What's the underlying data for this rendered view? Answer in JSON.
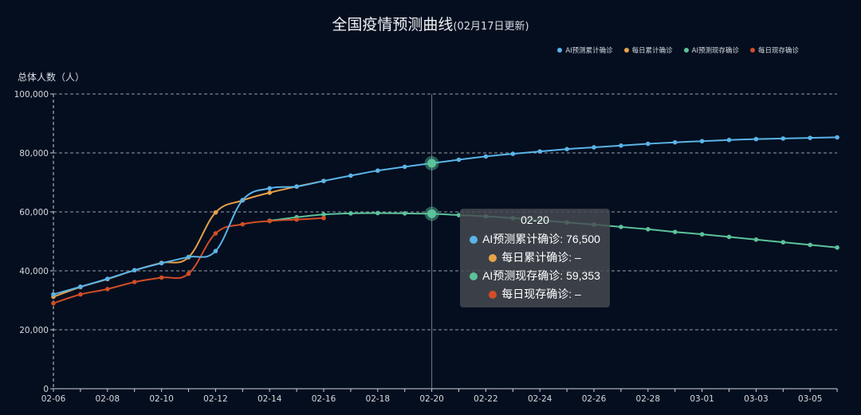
{
  "chart_data": {
    "type": "line",
    "title": "全国疫情预测曲线",
    "subtitle": "(02月17日更新)",
    "ylabel": "总体人数（人）",
    "ylim": [
      0,
      100000
    ],
    "yticks": [
      0,
      20000,
      40000,
      60000,
      80000,
      100000
    ],
    "ytick_labels": [
      "0",
      "20,000",
      "40,000",
      "60,000",
      "80,000",
      "100,000"
    ],
    "xticks": [
      "02-06",
      "02-08",
      "02-10",
      "02-12",
      "02-14",
      "02-16",
      "02-18",
      "02-20",
      "02-22",
      "02-24",
      "02-26",
      "02-28",
      "03-01",
      "03-03",
      "03-05"
    ],
    "x_dates": [
      "02-06",
      "02-07",
      "02-08",
      "02-09",
      "02-10",
      "02-11",
      "02-12",
      "02-13",
      "02-14",
      "02-15",
      "02-16",
      "02-17",
      "02-18",
      "02-19",
      "02-20",
      "02-21",
      "02-22",
      "02-23",
      "02-24",
      "02-25",
      "02-26",
      "02-27",
      "02-28",
      "02-29",
      "03-01",
      "03-02",
      "03-03",
      "03-04",
      "03-05",
      "03-06"
    ],
    "grid": true,
    "legend_position": "top-right",
    "series": [
      {
        "name": "AI预测累计确诊",
        "color": "#5ab4e8",
        "values": [
          32000,
          34600,
          37300,
          40200,
          42600,
          44700,
          46700,
          64000,
          68000,
          68600,
          70500,
          72300,
          74000,
          75300,
          76500,
          77700,
          78800,
          79700,
          80500,
          81300,
          81900,
          82500,
          83100,
          83600,
          84000,
          84400,
          84700,
          84900,
          85100,
          85300
        ]
      },
      {
        "name": "每日累计确诊",
        "color": "#e8a24a",
        "values": [
          31200,
          34500,
          37200,
          40200,
          42700,
          44600,
          59800,
          63900,
          66500,
          68600,
          70500,
          null,
          null,
          null,
          null,
          null,
          null,
          null,
          null,
          null,
          null,
          null,
          null,
          null,
          null,
          null,
          null,
          null,
          null,
          null
        ]
      },
      {
        "name": "AI预测现存确诊",
        "color": "#5cc29a",
        "values": [
          null,
          null,
          null,
          null,
          null,
          null,
          null,
          null,
          57000,
          58200,
          59100,
          59500,
          59600,
          59500,
          59353,
          58900,
          58500,
          57900,
          57200,
          56400,
          55700,
          54900,
          54100,
          53200,
          52400,
          51500,
          50600,
          49700,
          48800,
          47900
        ]
      },
      {
        "name": "每日现存确诊",
        "color": "#d24e26",
        "values": [
          29000,
          32000,
          33800,
          36200,
          37700,
          39000,
          52700,
          55800,
          56900,
          57400,
          57900,
          null,
          null,
          null,
          null,
          null,
          null,
          null,
          null,
          null,
          null,
          null,
          null,
          null,
          null,
          null,
          null,
          null,
          null,
          null
        ]
      }
    ],
    "highlight_date": "02-20",
    "tooltip": {
      "title": "02-20",
      "rows": [
        {
          "label": "AI预测累计确诊: 76,500",
          "color": "#5ab4e8"
        },
        {
          "label": "每日累计确诊: –",
          "color": "#e8a24a"
        },
        {
          "label": "AI预测现存确诊: 59,353",
          "color": "#5cc29a"
        },
        {
          "label": "每日现存确诊: –",
          "color": "#d24e26"
        }
      ]
    }
  }
}
